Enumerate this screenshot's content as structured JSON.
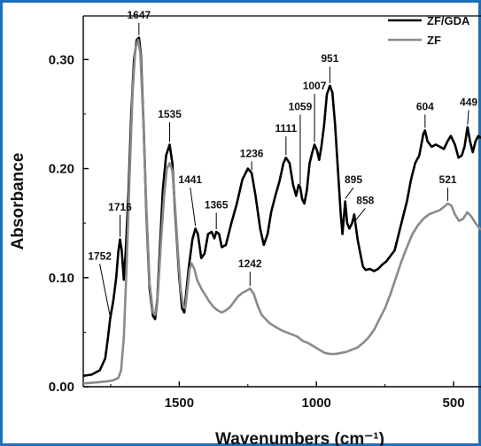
{
  "chart_data": {
    "type": "line",
    "xlabel": "Wavenumbers (cm⁻¹)",
    "ylabel": "Absorbance",
    "xlim": [
      1850,
      400
    ],
    "ylim": [
      0.0,
      0.34
    ],
    "x_reversed": true,
    "legend_position": "top-right",
    "x_ticks": [
      {
        "value": 1500,
        "label": "1500"
      },
      {
        "value": 1000,
        "label": "1000"
      },
      {
        "value": 500,
        "label": "500"
      }
    ],
    "y_ticks": [
      {
        "value": 0.0,
        "label": "0.00"
      },
      {
        "value": 0.1,
        "label": "0.10"
      },
      {
        "value": 0.2,
        "label": "0.20"
      },
      {
        "value": 0.3,
        "label": "0.30"
      }
    ],
    "series": [
      {
        "name": "ZF/GDA",
        "color": "#000000",
        "points": [
          [
            1850,
            0.01
          ],
          [
            1820,
            0.011
          ],
          [
            1790,
            0.015
          ],
          [
            1770,
            0.026
          ],
          [
            1760,
            0.045
          ],
          [
            1752,
            0.062
          ],
          [
            1740,
            0.08
          ],
          [
            1730,
            0.1
          ],
          [
            1722,
            0.124
          ],
          [
            1716,
            0.135
          ],
          [
            1710,
            0.125
          ],
          [
            1702,
            0.098
          ],
          [
            1695,
            0.125
          ],
          [
            1685,
            0.18
          ],
          [
            1675,
            0.25
          ],
          [
            1665,
            0.3
          ],
          [
            1655,
            0.318
          ],
          [
            1647,
            0.32
          ],
          [
            1640,
            0.305
          ],
          [
            1630,
            0.24
          ],
          [
            1620,
            0.16
          ],
          [
            1608,
            0.09
          ],
          [
            1596,
            0.065
          ],
          [
            1588,
            0.062
          ],
          [
            1580,
            0.08
          ],
          [
            1570,
            0.13
          ],
          [
            1560,
            0.18
          ],
          [
            1548,
            0.212
          ],
          [
            1535,
            0.222
          ],
          [
            1525,
            0.205
          ],
          [
            1515,
            0.16
          ],
          [
            1500,
            0.1
          ],
          [
            1490,
            0.072
          ],
          [
            1482,
            0.068
          ],
          [
            1475,
            0.085
          ],
          [
            1465,
            0.11
          ],
          [
            1452,
            0.135
          ],
          [
            1441,
            0.145
          ],
          [
            1432,
            0.14
          ],
          [
            1420,
            0.118
          ],
          [
            1408,
            0.122
          ],
          [
            1395,
            0.14
          ],
          [
            1382,
            0.142
          ],
          [
            1372,
            0.136
          ],
          [
            1365,
            0.142
          ],
          [
            1355,
            0.14
          ],
          [
            1345,
            0.128
          ],
          [
            1330,
            0.13
          ],
          [
            1310,
            0.15
          ],
          [
            1290,
            0.168
          ],
          [
            1270,
            0.19
          ],
          [
            1250,
            0.2
          ],
          [
            1236,
            0.196
          ],
          [
            1222,
            0.175
          ],
          [
            1205,
            0.145
          ],
          [
            1192,
            0.13
          ],
          [
            1178,
            0.14
          ],
          [
            1165,
            0.16
          ],
          [
            1150,
            0.175
          ],
          [
            1135,
            0.188
          ],
          [
            1120,
            0.205
          ],
          [
            1111,
            0.21
          ],
          [
            1098,
            0.205
          ],
          [
            1085,
            0.185
          ],
          [
            1074,
            0.175
          ],
          [
            1065,
            0.185
          ],
          [
            1059,
            0.183
          ],
          [
            1052,
            0.172
          ],
          [
            1044,
            0.168
          ],
          [
            1035,
            0.18
          ],
          [
            1025,
            0.205
          ],
          [
            1015,
            0.215
          ],
          [
            1007,
            0.222
          ],
          [
            998,
            0.217
          ],
          [
            990,
            0.208
          ],
          [
            982,
            0.22
          ],
          [
            972,
            0.24
          ],
          [
            962,
            0.268
          ],
          [
            951,
            0.276
          ],
          [
            942,
            0.27
          ],
          [
            932,
            0.24
          ],
          [
            922,
            0.2
          ],
          [
            912,
            0.16
          ],
          [
            905,
            0.14
          ],
          [
            895,
            0.17
          ],
          [
            888,
            0.15
          ],
          [
            880,
            0.145
          ],
          [
            870,
            0.15
          ],
          [
            862,
            0.158
          ],
          [
            858,
            0.15
          ],
          [
            850,
            0.135
          ],
          [
            840,
            0.122
          ],
          [
            830,
            0.11
          ],
          [
            820,
            0.107
          ],
          [
            805,
            0.108
          ],
          [
            790,
            0.106
          ],
          [
            775,
            0.108
          ],
          [
            760,
            0.112
          ],
          [
            745,
            0.115
          ],
          [
            730,
            0.12
          ],
          [
            715,
            0.125
          ],
          [
            700,
            0.14
          ],
          [
            685,
            0.155
          ],
          [
            670,
            0.17
          ],
          [
            655,
            0.19
          ],
          [
            640,
            0.205
          ],
          [
            625,
            0.212
          ],
          [
            610,
            0.232
          ],
          [
            604,
            0.235
          ],
          [
            595,
            0.225
          ],
          [
            580,
            0.22
          ],
          [
            565,
            0.222
          ],
          [
            550,
            0.22
          ],
          [
            535,
            0.218
          ],
          [
            522,
            0.225
          ],
          [
            510,
            0.23
          ],
          [
            495,
            0.222
          ],
          [
            482,
            0.21
          ],
          [
            470,
            0.212
          ],
          [
            460,
            0.22
          ],
          [
            449,
            0.238
          ],
          [
            440,
            0.225
          ],
          [
            430,
            0.215
          ],
          [
            420,
            0.225
          ],
          [
            410,
            0.23
          ],
          [
            400,
            0.228
          ]
        ]
      },
      {
        "name": "ZF",
        "color": "#8a8a8a",
        "points": [
          [
            1850,
            0.003
          ],
          [
            1800,
            0.004
          ],
          [
            1760,
            0.005
          ],
          [
            1740,
            0.006
          ],
          [
            1722,
            0.008
          ],
          [
            1712,
            0.015
          ],
          [
            1702,
            0.045
          ],
          [
            1692,
            0.11
          ],
          [
            1680,
            0.2
          ],
          [
            1670,
            0.27
          ],
          [
            1660,
            0.31
          ],
          [
            1650,
            0.318
          ],
          [
            1642,
            0.306
          ],
          [
            1632,
            0.25
          ],
          [
            1620,
            0.165
          ],
          [
            1608,
            0.095
          ],
          [
            1596,
            0.068
          ],
          [
            1588,
            0.066
          ],
          [
            1578,
            0.085
          ],
          [
            1566,
            0.135
          ],
          [
            1555,
            0.175
          ],
          [
            1545,
            0.2
          ],
          [
            1535,
            0.205
          ],
          [
            1525,
            0.198
          ],
          [
            1515,
            0.165
          ],
          [
            1505,
            0.125
          ],
          [
            1495,
            0.09
          ],
          [
            1485,
            0.073
          ],
          [
            1478,
            0.072
          ],
          [
            1470,
            0.09
          ],
          [
            1462,
            0.108
          ],
          [
            1455,
            0.113
          ],
          [
            1445,
            0.108
          ],
          [
            1435,
            0.098
          ],
          [
            1420,
            0.09
          ],
          [
            1405,
            0.084
          ],
          [
            1390,
            0.078
          ],
          [
            1375,
            0.073
          ],
          [
            1360,
            0.07
          ],
          [
            1345,
            0.068
          ],
          [
            1330,
            0.07
          ],
          [
            1315,
            0.073
          ],
          [
            1300,
            0.078
          ],
          [
            1285,
            0.083
          ],
          [
            1270,
            0.086
          ],
          [
            1255,
            0.088
          ],
          [
            1242,
            0.09
          ],
          [
            1228,
            0.085
          ],
          [
            1215,
            0.075
          ],
          [
            1200,
            0.066
          ],
          [
            1185,
            0.062
          ],
          [
            1170,
            0.058
          ],
          [
            1150,
            0.055
          ],
          [
            1130,
            0.052
          ],
          [
            1110,
            0.05
          ],
          [
            1090,
            0.048
          ],
          [
            1070,
            0.046
          ],
          [
            1050,
            0.042
          ],
          [
            1030,
            0.04
          ],
          [
            1010,
            0.037
          ],
          [
            990,
            0.034
          ],
          [
            970,
            0.031
          ],
          [
            950,
            0.03
          ],
          [
            930,
            0.03
          ],
          [
            910,
            0.031
          ],
          [
            890,
            0.032
          ],
          [
            870,
            0.034
          ],
          [
            850,
            0.036
          ],
          [
            830,
            0.04
          ],
          [
            810,
            0.045
          ],
          [
            790,
            0.052
          ],
          [
            770,
            0.062
          ],
          [
            750,
            0.072
          ],
          [
            730,
            0.085
          ],
          [
            710,
            0.1
          ],
          [
            690,
            0.115
          ],
          [
            670,
            0.128
          ],
          [
            650,
            0.14
          ],
          [
            630,
            0.148
          ],
          [
            610,
            0.154
          ],
          [
            590,
            0.158
          ],
          [
            570,
            0.16
          ],
          [
            550,
            0.162
          ],
          [
            535,
            0.165
          ],
          [
            521,
            0.168
          ],
          [
            508,
            0.166
          ],
          [
            495,
            0.158
          ],
          [
            480,
            0.152
          ],
          [
            465,
            0.154
          ],
          [
            450,
            0.16
          ],
          [
            435,
            0.156
          ],
          [
            420,
            0.15
          ],
          [
            405,
            0.145
          ],
          [
            400,
            0.144
          ]
        ]
      }
    ],
    "annotations": [
      {
        "series": 0,
        "x": 1752,
        "y": 0.062,
        "label": "1752",
        "label_at": [
          1790,
          0.115
        ]
      },
      {
        "series": 0,
        "x": 1716,
        "y": 0.135,
        "label": "1716",
        "label_at": [
          1716,
          0.16
        ]
      },
      {
        "series": 0,
        "x": 1647,
        "y": 0.32,
        "label": "1647",
        "label_at": [
          1647,
          0.336
        ]
      },
      {
        "series": 0,
        "x": 1535,
        "y": 0.222,
        "label": "1535",
        "label_at": [
          1535,
          0.245
        ]
      },
      {
        "series": 0,
        "x": 1441,
        "y": 0.145,
        "label": "1441",
        "label_at": [
          1460,
          0.185
        ]
      },
      {
        "series": 0,
        "x": 1365,
        "y": 0.142,
        "label": "1365",
        "label_at": [
          1365,
          0.162
        ]
      },
      {
        "series": 0,
        "x": 1236,
        "y": 0.196,
        "label": "1236",
        "label_at": [
          1236,
          0.209
        ]
      },
      {
        "series": 0,
        "x": 1111,
        "y": 0.21,
        "label": "1111",
        "label_at": [
          1111,
          0.232
        ]
      },
      {
        "series": 0,
        "x": 1059,
        "y": 0.183,
        "label": "1059",
        "label_at": [
          1059,
          0.252
        ]
      },
      {
        "series": 0,
        "x": 1007,
        "y": 0.222,
        "label": "1007",
        "label_at": [
          1007,
          0.271
        ]
      },
      {
        "series": 0,
        "x": 951,
        "y": 0.276,
        "label": "951",
        "label_at": [
          951,
          0.296
        ]
      },
      {
        "series": 0,
        "x": 895,
        "y": 0.17,
        "label": "895",
        "label_at": [
          865,
          0.185
        ]
      },
      {
        "series": 0,
        "x": 858,
        "y": 0.15,
        "label": "858",
        "label_at": [
          822,
          0.166
        ]
      },
      {
        "series": 0,
        "x": 604,
        "y": 0.235,
        "label": "604",
        "label_at": [
          604,
          0.252
        ]
      },
      {
        "series": 0,
        "x": 449,
        "y": 0.238,
        "label": "449",
        "label_at": [
          445,
          0.256
        ]
      },
      {
        "series": 1,
        "x": 1242,
        "y": 0.09,
        "label": "1242",
        "label_at": [
          1242,
          0.108
        ]
      },
      {
        "series": 1,
        "x": 521,
        "y": 0.168,
        "label": "521",
        "label_at": [
          521,
          0.185
        ]
      }
    ]
  }
}
